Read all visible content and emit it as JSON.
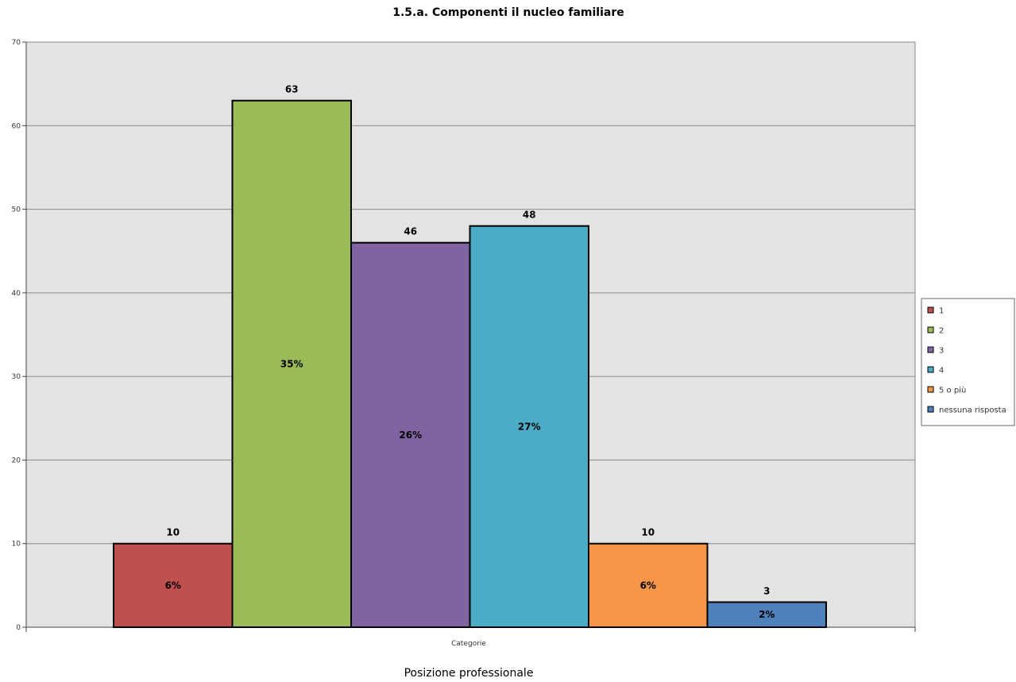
{
  "chart_data": {
    "type": "bar",
    "title": "1.5.a. Componenti il nucleo familiare",
    "xlabel": "Posizione professionale",
    "ylabel": "",
    "categories": [
      "Categorie"
    ],
    "ylim": [
      0,
      70
    ],
    "yticks": [
      0,
      10,
      20,
      30,
      40,
      50,
      60,
      70
    ],
    "grid": true,
    "legend_position": "right",
    "series": [
      {
        "name": "1",
        "values": [
          10
        ],
        "percent_label": "6%",
        "color": "#c0504d"
      },
      {
        "name": "2",
        "values": [
          63
        ],
        "percent_label": "35%",
        "color": "#9bbb59"
      },
      {
        "name": "3",
        "values": [
          46
        ],
        "percent_label": "26%",
        "color": "#8064a2"
      },
      {
        "name": "4",
        "values": [
          48
        ],
        "percent_label": "27%",
        "color": "#4bacc6"
      },
      {
        "name": "5 o più",
        "values": [
          10
        ],
        "percent_label": "6%",
        "color": "#f79646"
      },
      {
        "name": "nessuna risposta",
        "values": [
          3
        ],
        "percent_label": "2%",
        "color": "#4f81bd"
      }
    ],
    "plot_background": "#e3e3e3"
  }
}
